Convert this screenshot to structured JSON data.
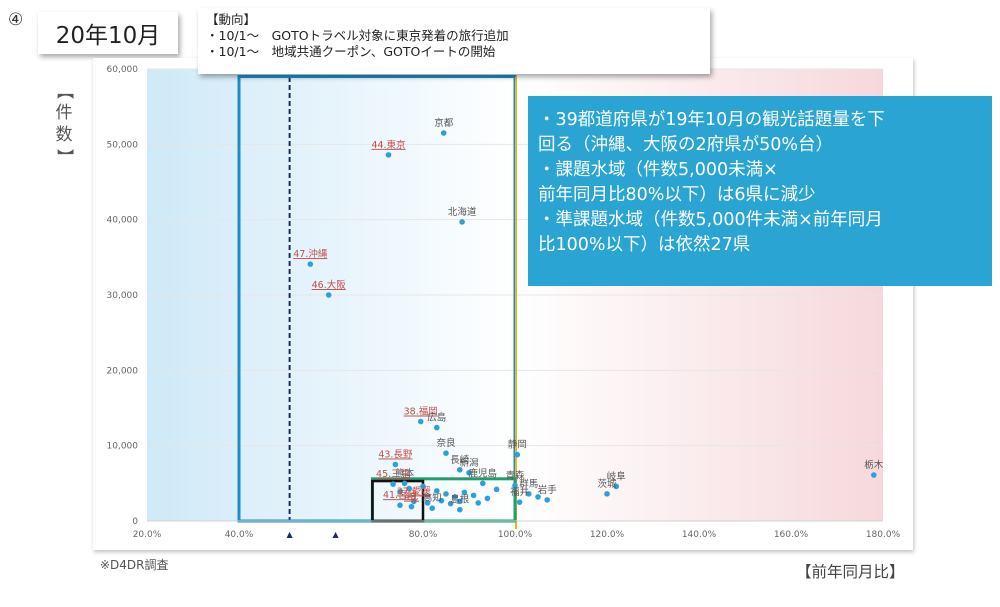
{
  "slide_number": "④",
  "month_label": "20年10月",
  "trend": {
    "heading": "【動向】",
    "lines": [
      "・10/1～　GOTOトラベル対象に東京発着の旅行追加",
      "・10/1～　地域共通クーポン、GOTOイートの開始"
    ]
  },
  "callout": {
    "lines": [
      "・39都道府県が19年10月の観光話題量を下",
      "回る（沖縄、大阪の2府県が50%台）",
      "・課題水域（件数5,000未満×",
      "前年同月比80%以下）は6県に減少",
      "・準課題水域（件数5,000件未満×前年同月",
      "比100%以下）は依然27県"
    ]
  },
  "source_note": "※D4DR調査",
  "colors": {
    "point": "#2e9fdb",
    "left_zone": "#cfe9f8",
    "right_zone": "#f6d8dc",
    "frame_blue": "#1b8fc9",
    "frame_yellow": "#e9b620",
    "frame_green": "#1f9e6e",
    "frame_black": "#111111",
    "callout_bg": "#2aa5d3",
    "label_red": "#c0504d"
  },
  "chart_data": {
    "type": "scatter",
    "title": "",
    "xlabel": "【前年同月比】",
    "ylabel": "【件数】",
    "xlim": [
      20,
      180
    ],
    "ylim": [
      0,
      60000
    ],
    "x_ticks": [
      "20.0%",
      "40.0%",
      "60.0%",
      "80.0%",
      "100.0%",
      "120.0%",
      "140.0%",
      "160.0%",
      "180.0%"
    ],
    "y_ticks": [
      "0",
      "10,000",
      "20,000",
      "30,000",
      "40,000",
      "50,000",
      "60,000"
    ],
    "axis_markers": {
      "x": [
        51,
        61
      ],
      "glyph": "▲"
    },
    "reference_line_x": 51,
    "points": [
      {
        "label": "京都",
        "x": 84.5,
        "y": 51500,
        "highlight": false
      },
      {
        "label": "44.東京",
        "x": 72.5,
        "y": 48600,
        "highlight": true
      },
      {
        "label": "北海道",
        "x": 88.5,
        "y": 39700,
        "highlight": false
      },
      {
        "label": "47.沖縄",
        "x": 55.5,
        "y": 34100,
        "highlight": true
      },
      {
        "label": "46.大阪",
        "x": 59.5,
        "y": 30000,
        "highlight": true
      },
      {
        "label": "38.福岡",
        "x": 79.5,
        "y": 13200,
        "highlight": true
      },
      {
        "label": "広島",
        "x": 83,
        "y": 12400,
        "highlight": false
      },
      {
        "label": "奈良",
        "x": 85,
        "y": 9000,
        "highlight": false
      },
      {
        "label": "静岡",
        "x": 100.5,
        "y": 8800,
        "highlight": false
      },
      {
        "label": "43.長野",
        "x": 74,
        "y": 7500,
        "highlight": true
      },
      {
        "label": "長崎",
        "x": 88,
        "y": 6800,
        "highlight": false
      },
      {
        "label": "新潟",
        "x": 90,
        "y": 6400,
        "highlight": false
      },
      {
        "label": "栃木",
        "x": 178,
        "y": 6100,
        "highlight": false
      },
      {
        "label": "熊本",
        "x": 76,
        "y": 5000,
        "highlight": false
      },
      {
        "label": "鹿児島",
        "x": 93,
        "y": 5000,
        "highlight": false
      },
      {
        "label": "45.三重",
        "x": 73.5,
        "y": 4900,
        "highlight": true
      },
      {
        "label": "青森",
        "x": 100,
        "y": 4700,
        "highlight": false
      },
      {
        "label": "岐阜",
        "x": 122,
        "y": 4600,
        "highlight": false
      },
      {
        "label": "",
        "x": 75,
        "y": 3900,
        "highlight": false
      },
      {
        "label": "",
        "x": 77,
        "y": 4300,
        "highlight": false
      },
      {
        "label": "",
        "x": 80,
        "y": 4600,
        "highlight": false
      },
      {
        "label": "",
        "x": 83,
        "y": 4000,
        "highlight": false
      },
      {
        "label": "",
        "x": 85,
        "y": 3600,
        "highlight": false
      },
      {
        "label": "",
        "x": 87,
        "y": 3200,
        "highlight": false
      },
      {
        "label": "",
        "x": 89,
        "y": 3800,
        "highlight": false
      },
      {
        "label": "",
        "x": 91,
        "y": 3400,
        "highlight": false
      },
      {
        "label": "",
        "x": 94,
        "y": 3000,
        "highlight": false
      },
      {
        "label": "",
        "x": 96,
        "y": 4200,
        "highlight": false
      },
      {
        "label": "群馬",
        "x": 103,
        "y": 3600,
        "highlight": false
      },
      {
        "label": "",
        "x": 105,
        "y": 3200,
        "highlight": false
      },
      {
        "label": "茨城",
        "x": 120,
        "y": 3600,
        "highlight": false
      },
      {
        "label": "岩手",
        "x": 107,
        "y": 2800,
        "highlight": false
      },
      {
        "label": "福井",
        "x": 101,
        "y": 2500,
        "highlight": false
      },
      {
        "label": "37.愛媛",
        "x": 78,
        "y": 2600,
        "highlight": true
      },
      {
        "label": "",
        "x": 81,
        "y": 2400,
        "highlight": false
      },
      {
        "label": "",
        "x": 84,
        "y": 2700,
        "highlight": false
      },
      {
        "label": "",
        "x": 86,
        "y": 2300,
        "highlight": false
      },
      {
        "label": "",
        "x": 88,
        "y": 2600,
        "highlight": false
      },
      {
        "label": "",
        "x": 92,
        "y": 2400,
        "highlight": false
      },
      {
        "label": "41.宮崎",
        "x": 75,
        "y": 2100,
        "highlight": true
      },
      {
        "label": "40.",
        "x": 77.5,
        "y": 1900,
        "highlight": true
      },
      {
        "label": "高知",
        "x": 82,
        "y": 1700,
        "highlight": false
      },
      {
        "label": "島根",
        "x": 88,
        "y": 1500,
        "highlight": false
      }
    ],
    "regions": [
      {
        "name": "blue-frame",
        "x": [
          40,
          100
        ],
        "y": [
          0,
          59000
        ]
      },
      {
        "name": "green-frame",
        "x": [
          69,
          100
        ],
        "y": [
          0,
          5600
        ]
      },
      {
        "name": "black-frame",
        "x": [
          69,
          80
        ],
        "y": [
          0,
          5300
        ]
      }
    ]
  }
}
